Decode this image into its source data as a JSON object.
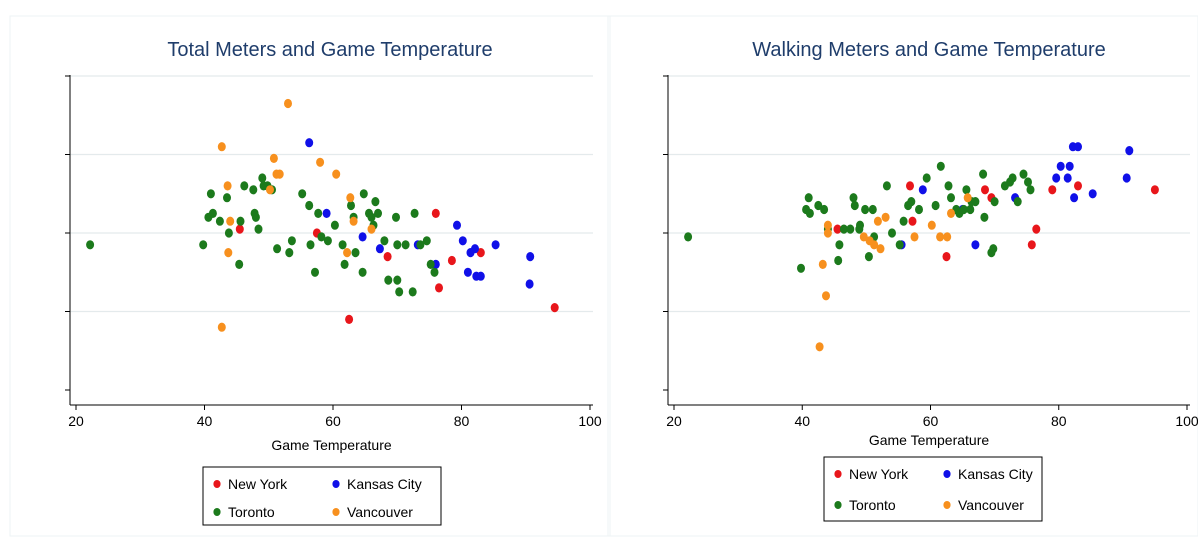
{
  "colors": {
    "New York": "#e8161b",
    "Kansas City": "#1010e8",
    "Toronto": "#1c7a1c",
    "Vancouver": "#f7901e",
    "title": "#1f3d6b",
    "grid": "#e4eaec",
    "panel_border": "#eef3f4"
  },
  "chart_data": [
    {
      "type": "scatter",
      "title": "Total Meters and Game Temperature",
      "xlabel": "Game Temperature",
      "ylabel": "",
      "xlim": [
        20,
        100
      ],
      "xticks": [
        20,
        40,
        60,
        80,
        100
      ],
      "ylim": [
        0,
        5
      ],
      "yticks": [
        0,
        1,
        2,
        3,
        4,
        5
      ],
      "y_tick_labels_shown": false,
      "grid": true,
      "legend": {
        "position": "bottom",
        "columns": 2,
        "entries": [
          "New York",
          "Kansas City",
          "Toronto",
          "Vancouver"
        ]
      },
      "series": [
        {
          "name": "New York",
          "points": [
            [
              45.5,
              2.05
            ],
            [
              57.5,
              2.0
            ],
            [
              68.5,
              1.7
            ],
            [
              76,
              2.25
            ],
            [
              76.5,
              1.3
            ],
            [
              78.5,
              1.65
            ],
            [
              83,
              1.75
            ],
            [
              62.5,
              0.9
            ],
            [
              94.5,
              1.05
            ]
          ]
        },
        {
          "name": "Kansas City",
          "points": [
            [
              56.3,
              3.15
            ],
            [
              59,
              2.25
            ],
            [
              64.6,
              1.95
            ],
            [
              67.3,
              1.8
            ],
            [
              73.2,
              1.85
            ],
            [
              76,
              1.6
            ],
            [
              79.3,
              2.1
            ],
            [
              80.2,
              1.9
            ],
            [
              81.4,
              1.75
            ],
            [
              82.1,
              1.8
            ],
            [
              81,
              1.5
            ],
            [
              82.3,
              1.45
            ],
            [
              83,
              1.45
            ],
            [
              85.3,
              1.85
            ],
            [
              90.7,
              1.7
            ],
            [
              90.6,
              1.35
            ]
          ]
        },
        {
          "name": "Toronto",
          "points": [
            [
              22.2,
              1.85
            ],
            [
              39.8,
              1.85
            ],
            [
              40.6,
              2.2
            ],
            [
              41,
              2.5
            ],
            [
              41.3,
              2.25
            ],
            [
              42.4,
              2.15
            ],
            [
              43.5,
              2.45
            ],
            [
              43.8,
              2.0
            ],
            [
              45.4,
              1.6
            ],
            [
              45.6,
              2.15
            ],
            [
              46.2,
              2.6
            ],
            [
              47.6,
              2.55
            ],
            [
              47.8,
              2.25
            ],
            [
              48,
              2.2
            ],
            [
              48.4,
              2.05
            ],
            [
              49,
              2.7
            ],
            [
              49.2,
              2.6
            ],
            [
              49.8,
              2.6
            ],
            [
              50.5,
              2.55
            ],
            [
              51.3,
              1.8
            ],
            [
              53.2,
              1.75
            ],
            [
              53.6,
              1.9
            ],
            [
              55.2,
              2.5
            ],
            [
              56.3,
              2.35
            ],
            [
              56.5,
              1.85
            ],
            [
              57.2,
              1.5
            ],
            [
              57.7,
              2.25
            ],
            [
              58.2,
              1.95
            ],
            [
              59.2,
              1.9
            ],
            [
              60.3,
              2.1
            ],
            [
              61.5,
              1.85
            ],
            [
              61.8,
              1.6
            ],
            [
              62.8,
              2.35
            ],
            [
              63.2,
              2.2
            ],
            [
              63.5,
              1.75
            ],
            [
              64.6,
              1.5
            ],
            [
              64.8,
              2.5
            ],
            [
              65.6,
              2.25
            ],
            [
              66,
              2.2
            ],
            [
              66.3,
              2.1
            ],
            [
              66.6,
              2.4
            ],
            [
              67,
              2.25
            ],
            [
              68,
              1.9
            ],
            [
              68.6,
              1.4
            ],
            [
              69.8,
              2.2
            ],
            [
              70,
              1.85
            ],
            [
              70,
              1.4
            ],
            [
              70.3,
              1.25
            ],
            [
              71.3,
              1.85
            ],
            [
              72.4,
              1.25
            ],
            [
              72.7,
              2.25
            ],
            [
              73.6,
              1.85
            ],
            [
              74.6,
              1.9
            ],
            [
              75.2,
              1.6
            ],
            [
              75.8,
              1.5
            ]
          ]
        },
        {
          "name": "Vancouver",
          "points": [
            [
              42.7,
              3.1
            ],
            [
              43.6,
              2.6
            ],
            [
              44,
              2.15
            ],
            [
              42.7,
              0.8
            ],
            [
              43.7,
              1.75
            ],
            [
              50.2,
              2.55
            ],
            [
              50.8,
              2.95
            ],
            [
              51.2,
              2.75
            ],
            [
              51.7,
              2.75
            ],
            [
              53,
              3.65
            ],
            [
              58,
              2.9
            ],
            [
              60.5,
              2.75
            ],
            [
              62.2,
              1.75
            ],
            [
              62.7,
              2.45
            ],
            [
              63.2,
              2.15
            ],
            [
              66,
              2.05
            ]
          ]
        }
      ]
    },
    {
      "type": "scatter",
      "title": "Walking Meters and Game Temperature",
      "xlabel": "Game Temperature",
      "ylabel": "",
      "xlim": [
        20,
        100
      ],
      "xticks": [
        20,
        40,
        60,
        80,
        100
      ],
      "ylim": [
        0,
        5
      ],
      "yticks": [
        0,
        1,
        2,
        3,
        4,
        5
      ],
      "y_tick_labels_shown": false,
      "grid": true,
      "legend": {
        "position": "bottom",
        "columns": 2,
        "entries": [
          "New York",
          "Kansas City",
          "Toronto",
          "Vancouver"
        ]
      },
      "series": [
        {
          "name": "New York",
          "points": [
            [
              45.5,
              2.05
            ],
            [
              56.8,
              2.6
            ],
            [
              57.2,
              2.15
            ],
            [
              62.5,
              1.7
            ],
            [
              68.5,
              2.55
            ],
            [
              69.5,
              2.45
            ],
            [
              75.8,
              1.85
            ],
            [
              76.5,
              2.05
            ],
            [
              79,
              2.55
            ],
            [
              83,
              2.6
            ],
            [
              95,
              2.55
            ]
          ]
        },
        {
          "name": "Kansas City",
          "points": [
            [
              55.5,
              1.85
            ],
            [
              58.8,
              2.55
            ],
            [
              65,
              2.3
            ],
            [
              67,
              1.85
            ],
            [
              73.2,
              2.45
            ],
            [
              79.6,
              2.7
            ],
            [
              80.3,
              2.85
            ],
            [
              81.4,
              2.7
            ],
            [
              81.7,
              2.85
            ],
            [
              82.2,
              3.1
            ],
            [
              83,
              3.1
            ],
            [
              82.4,
              2.45
            ],
            [
              85.3,
              2.5
            ],
            [
              90.6,
              2.7
            ],
            [
              91,
              3.05
            ]
          ]
        },
        {
          "name": "Toronto",
          "points": [
            [
              22.2,
              1.95
            ],
            [
              39.8,
              1.55
            ],
            [
              40.6,
              2.3
            ],
            [
              41,
              2.45
            ],
            [
              41.2,
              2.25
            ],
            [
              42.5,
              2.35
            ],
            [
              43.4,
              2.3
            ],
            [
              44,
              2.05
            ],
            [
              45.6,
              1.65
            ],
            [
              45.8,
              1.85
            ],
            [
              46.5,
              2.05
            ],
            [
              47.5,
              2.05
            ],
            [
              48,
              2.45
            ],
            [
              48.2,
              2.35
            ],
            [
              48.9,
              2.05
            ],
            [
              49,
              2.1
            ],
            [
              49.8,
              2.3
            ],
            [
              50.4,
              1.7
            ],
            [
              51,
              2.3
            ],
            [
              51.2,
              1.95
            ],
            [
              53.2,
              2.6
            ],
            [
              54,
              2.0
            ],
            [
              55.2,
              1.85
            ],
            [
              55.8,
              2.15
            ],
            [
              56.5,
              2.35
            ],
            [
              57,
              2.4
            ],
            [
              58.2,
              2.3
            ],
            [
              59.4,
              2.7
            ],
            [
              60.8,
              2.35
            ],
            [
              61.6,
              2.85
            ],
            [
              62.8,
              2.6
            ],
            [
              63.2,
              2.45
            ],
            [
              64,
              2.3
            ],
            [
              64.5,
              2.25
            ],
            [
              65.2,
              2.3
            ],
            [
              65.6,
              2.55
            ],
            [
              66.2,
              2.3
            ],
            [
              66.4,
              2.4
            ],
            [
              67,
              2.4
            ],
            [
              68.2,
              2.75
            ],
            [
              68.4,
              2.2
            ],
            [
              69.5,
              1.75
            ],
            [
              69.8,
              1.8
            ],
            [
              70,
              2.4
            ],
            [
              71.6,
              2.6
            ],
            [
              72.4,
              2.65
            ],
            [
              72.8,
              2.7
            ],
            [
              73.6,
              2.4
            ],
            [
              74.5,
              2.75
            ],
            [
              75.2,
              2.65
            ],
            [
              75.6,
              2.55
            ]
          ]
        },
        {
          "name": "Vancouver",
          "points": [
            [
              42.7,
              0.55
            ],
            [
              43.2,
              1.6
            ],
            [
              43.7,
              1.2
            ],
            [
              44,
              2.1
            ],
            [
              44,
              2.0
            ],
            [
              49.6,
              1.95
            ],
            [
              50.5,
              1.9
            ],
            [
              51.2,
              1.85
            ],
            [
              51.8,
              2.15
            ],
            [
              52.2,
              1.8
            ],
            [
              53,
              2.2
            ],
            [
              57.5,
              1.95
            ],
            [
              60.2,
              2.1
            ],
            [
              61.5,
              1.95
            ],
            [
              62.6,
              1.95
            ],
            [
              63.2,
              2.25
            ],
            [
              65.8,
              2.45
            ]
          ]
        }
      ]
    }
  ]
}
